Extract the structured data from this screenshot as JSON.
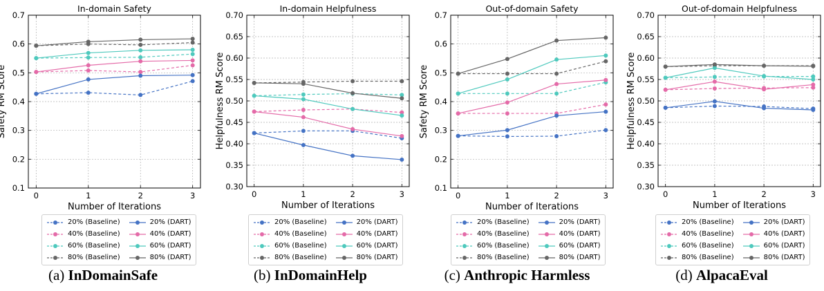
{
  "figure": {
    "series_styles": [
      {
        "name": "20% (Baseline)",
        "color": "#4472c4",
        "dash": true
      },
      {
        "name": "40% (Baseline)",
        "color": "#e46aa8",
        "dash": true
      },
      {
        "name": "60% (Baseline)",
        "color": "#4ec9bd",
        "dash": true
      },
      {
        "name": "80% (Baseline)",
        "color": "#666666",
        "dash": true
      },
      {
        "name": "20% (DART)",
        "color": "#4472c4",
        "dash": false
      },
      {
        "name": "40% (DART)",
        "color": "#e46aa8",
        "dash": false
      },
      {
        "name": "60% (DART)",
        "color": "#4ec9bd",
        "dash": false
      },
      {
        "name": "80% (DART)",
        "color": "#666666",
        "dash": false
      }
    ]
  },
  "chart_data": [
    {
      "type": "line",
      "title": "In-domain Safety",
      "xlabel": "Number of Iterations",
      "ylabel": "Safety RM Score",
      "x": [
        0,
        1,
        2,
        3
      ],
      "xlim": [
        -0.15,
        3.15
      ],
      "ylim": [
        0.1,
        0.7
      ],
      "yticks": [
        "0.1",
        "0.2",
        "0.3",
        "0.4",
        "0.5",
        "0.6",
        "0.7"
      ],
      "xticks": [
        "0",
        "1",
        "2",
        "3"
      ],
      "grid": true,
      "caption_prefix": "(a) ",
      "caption_bold": "InDomainSafe",
      "series": [
        {
          "name": "20% (Baseline)",
          "values": [
            0.427,
            0.431,
            0.423,
            0.471
          ]
        },
        {
          "name": "40% (Baseline)",
          "values": [
            0.503,
            0.508,
            0.503,
            0.526
          ]
        },
        {
          "name": "60% (Baseline)",
          "values": [
            0.551,
            0.553,
            0.554,
            0.565
          ]
        },
        {
          "name": "80% (Baseline)",
          "values": [
            0.594,
            0.6,
            0.597,
            0.605
          ]
        },
        {
          "name": "20% (DART)",
          "values": [
            0.427,
            0.477,
            0.49,
            0.492
          ]
        },
        {
          "name": "40% (DART)",
          "values": [
            0.503,
            0.526,
            0.54,
            0.543
          ]
        },
        {
          "name": "60% (DART)",
          "values": [
            0.551,
            0.569,
            0.578,
            0.58
          ]
        },
        {
          "name": "80% (DART)",
          "values": [
            0.594,
            0.608,
            0.615,
            0.618
          ]
        }
      ]
    },
    {
      "type": "line",
      "title": "In-domain Helpfulness",
      "xlabel": "Number of Iterations",
      "ylabel": "Helpfulness RM Score",
      "x": [
        0,
        1,
        2,
        3
      ],
      "xlim": [
        -0.15,
        3.15
      ],
      "ylim": [
        0.3,
        0.7
      ],
      "yticks": [
        "0.30",
        "0.35",
        "0.40",
        "0.45",
        "0.50",
        "0.55",
        "0.60",
        "0.65",
        "0.70"
      ],
      "xticks": [
        "0",
        "1",
        "2",
        "3"
      ],
      "grid": true,
      "caption_prefix": "(b) ",
      "caption_bold": "InDomainHelp",
      "series": [
        {
          "name": "20% (Baseline)",
          "values": [
            0.425,
            0.43,
            0.43,
            0.413
          ]
        },
        {
          "name": "40% (Baseline)",
          "values": [
            0.475,
            0.479,
            0.481,
            0.473
          ]
        },
        {
          "name": "60% (Baseline)",
          "values": [
            0.512,
            0.515,
            0.517,
            0.514
          ]
        },
        {
          "name": "80% (Baseline)",
          "values": [
            0.542,
            0.544,
            0.546,
            0.546
          ]
        },
        {
          "name": "20% (DART)",
          "values": [
            0.425,
            0.397,
            0.372,
            0.363
          ]
        },
        {
          "name": "40% (DART)",
          "values": [
            0.475,
            0.462,
            0.434,
            0.418
          ]
        },
        {
          "name": "60% (DART)",
          "values": [
            0.512,
            0.504,
            0.481,
            0.466
          ]
        },
        {
          "name": "80% (DART)",
          "values": [
            0.542,
            0.54,
            0.518,
            0.506
          ]
        }
      ]
    },
    {
      "type": "line",
      "title": "Out-of-domain Safety",
      "xlabel": "Number of Iterations",
      "ylabel": "Safety RM Score",
      "x": [
        0,
        1,
        2,
        3
      ],
      "xlim": [
        -0.15,
        3.15
      ],
      "ylim": [
        0.1,
        0.7
      ],
      "yticks": [
        "0.1",
        "0.2",
        "0.3",
        "0.4",
        "0.5",
        "0.6",
        "0.7"
      ],
      "xticks": [
        "0",
        "1",
        "2",
        "3"
      ],
      "grid": true,
      "caption_prefix": "(c) ",
      "caption_bold": "Anthropic Harmless",
      "series": [
        {
          "name": "20% (Baseline)",
          "values": [
            0.281,
            0.279,
            0.28,
            0.301
          ]
        },
        {
          "name": "40% (Baseline)",
          "values": [
            0.359,
            0.359,
            0.359,
            0.39
          ]
        },
        {
          "name": "60% (Baseline)",
          "values": [
            0.428,
            0.428,
            0.428,
            0.467
          ]
        },
        {
          "name": "80% (Baseline)",
          "values": [
            0.497,
            0.497,
            0.497,
            0.54
          ]
        },
        {
          "name": "20% (DART)",
          "values": [
            0.281,
            0.301,
            0.351,
            0.365
          ]
        },
        {
          "name": "40% (DART)",
          "values": [
            0.359,
            0.397,
            0.461,
            0.475
          ]
        },
        {
          "name": "60% (DART)",
          "values": [
            0.428,
            0.477,
            0.546,
            0.56
          ]
        },
        {
          "name": "80% (DART)",
          "values": [
            0.497,
            0.548,
            0.612,
            0.622
          ]
        }
      ]
    },
    {
      "type": "line",
      "title": "Out-of-domain Helpfulness",
      "xlabel": "Number of Iterations",
      "ylabel": "Helpfulness RM Score",
      "x": [
        0,
        1,
        2,
        3
      ],
      "xlim": [
        -0.15,
        3.15
      ],
      "ylim": [
        0.3,
        0.7
      ],
      "yticks": [
        "0.30",
        "0.35",
        "0.40",
        "0.45",
        "0.50",
        "0.55",
        "0.60",
        "0.65",
        "0.70"
      ],
      "xticks": [
        "0",
        "1",
        "2",
        "3"
      ],
      "grid": true,
      "caption_prefix": "(d) ",
      "caption_bold": "AlpacaEval",
      "series": [
        {
          "name": "20% (Baseline)",
          "values": [
            0.484,
            0.488,
            0.487,
            0.482
          ]
        },
        {
          "name": "40% (Baseline)",
          "values": [
            0.526,
            0.529,
            0.53,
            0.531
          ]
        },
        {
          "name": "60% (Baseline)",
          "values": [
            0.554,
            0.556,
            0.557,
            0.557
          ]
        },
        {
          "name": "80% (Baseline)",
          "values": [
            0.58,
            0.582,
            0.582,
            0.582
          ]
        },
        {
          "name": "20% (DART)",
          "values": [
            0.484,
            0.499,
            0.483,
            0.479
          ]
        },
        {
          "name": "40% (DART)",
          "values": [
            0.526,
            0.545,
            0.527,
            0.538
          ]
        },
        {
          "name": "60% (DART)",
          "values": [
            0.554,
            0.577,
            0.558,
            0.55
          ]
        },
        {
          "name": "80% (DART)",
          "values": [
            0.58,
            0.585,
            0.582,
            0.581
          ]
        }
      ]
    }
  ]
}
